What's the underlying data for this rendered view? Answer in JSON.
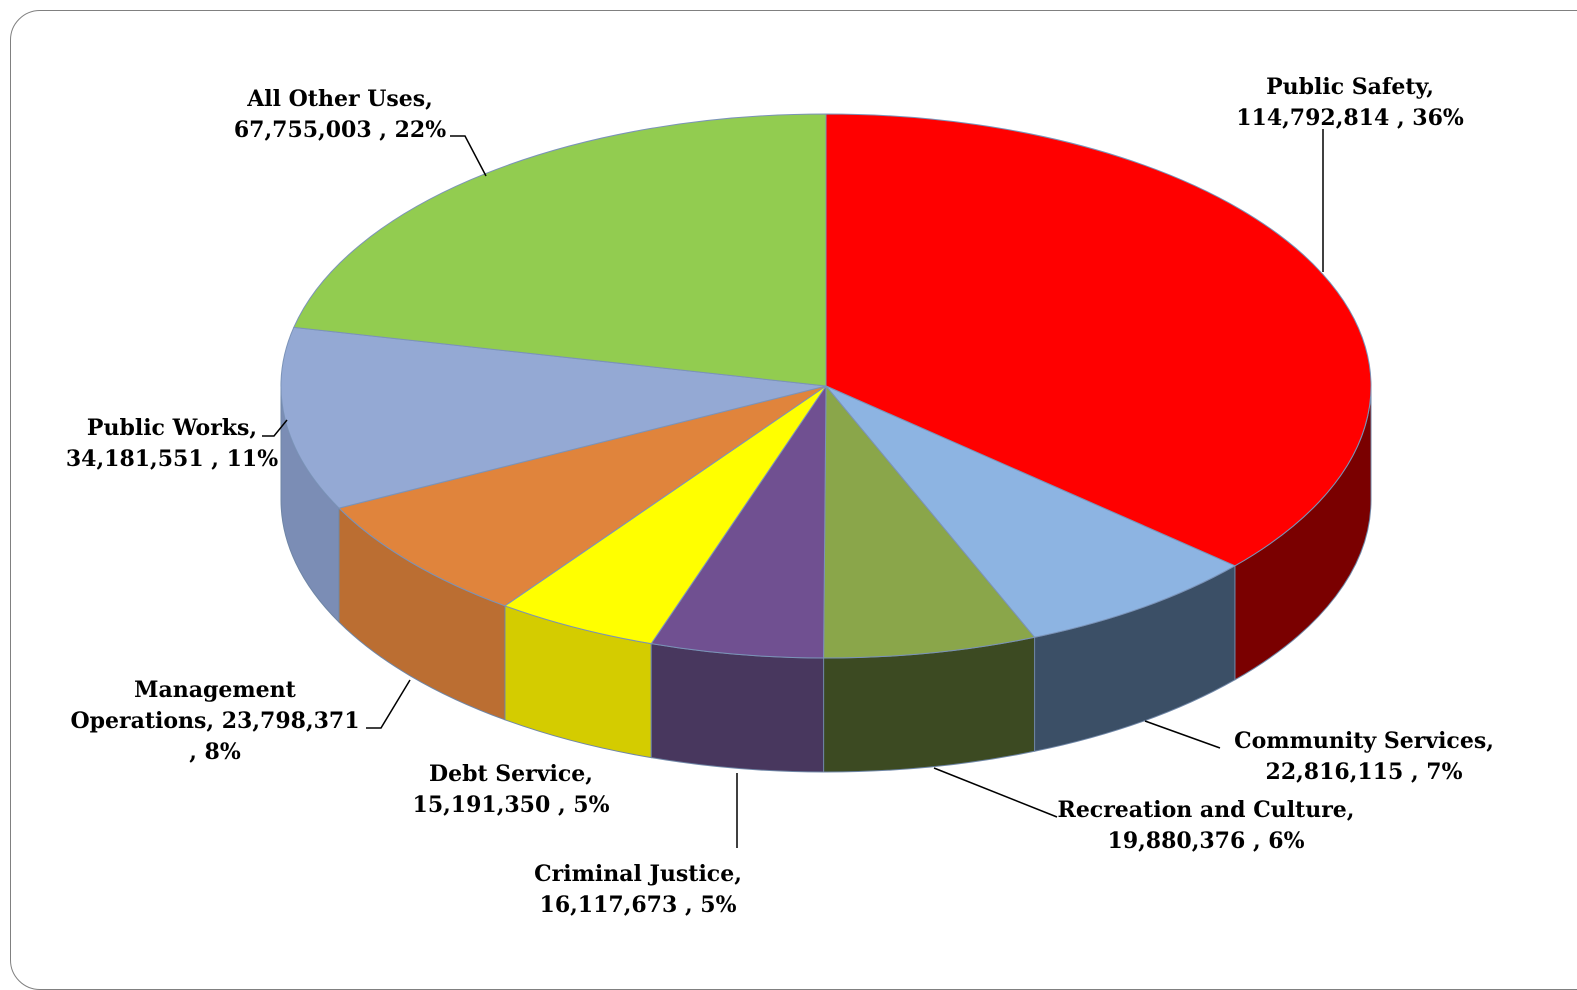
{
  "chart_data": {
    "type": "pie",
    "style": "3d",
    "slices": [
      {
        "name": "Public Safety",
        "value": 114792814,
        "percent": "36%",
        "color": "#ff0000",
        "side_color": "#7a0000",
        "label_lines": [
          "Public Safety,",
          "114,792,814 , 36%"
        ]
      },
      {
        "name": "Community Services",
        "value": 22816115,
        "percent": "7%",
        "color": "#8db4e2",
        "side_color": "#3b4f66",
        "label_lines": [
          "Community Services,",
          "22,816,115 , 7%"
        ]
      },
      {
        "name": "Recreation and Culture",
        "value": 19880376,
        "percent": "6%",
        "color": "#8aa64a",
        "side_color": "#3c4a22",
        "label_lines": [
          "Recreation and Culture,",
          "19,880,376 , 6%"
        ]
      },
      {
        "name": "Criminal Justice",
        "value": 16117673,
        "percent": "5%",
        "color": "#705091",
        "side_color": "#48375e",
        "label_lines": [
          "Criminal Justice,",
          "16,117,673 , 5%"
        ]
      },
      {
        "name": "Debt Service",
        "value": 15191350,
        "percent": "5%",
        "color": "#ffff00",
        "side_color": "#d4cc00",
        "label_lines": [
          "Debt Service,",
          "15,191,350 , 5%"
        ]
      },
      {
        "name": "Management Operations",
        "value": 23798371,
        "percent": "8%",
        "color": "#e0843c",
        "side_color": "#bb6e32",
        "label_lines": [
          "Management",
          "Operations,  23,798,371",
          ", 8%"
        ]
      },
      {
        "name": "Public Works",
        "value": 34181551,
        "percent": "11%",
        "color": "#94a9d4",
        "side_color": "#7b8db5",
        "label_lines": [
          "Public Works,",
          "34,181,551 , 11%"
        ]
      },
      {
        "name": "All Other Uses",
        "value": 67755003,
        "percent": "22%",
        "color": "#92cc50",
        "side_color": "#6f9c3c",
        "label_lines": [
          "All Other Uses,",
          "67,755,003 , 22%"
        ]
      }
    ]
  }
}
